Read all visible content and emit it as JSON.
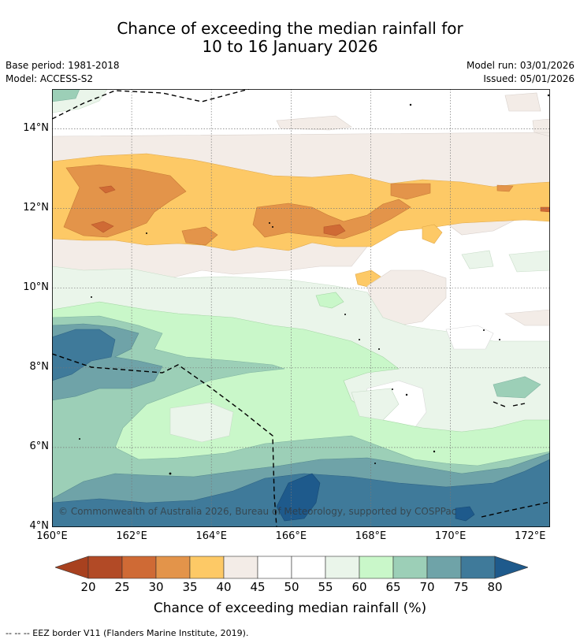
{
  "title": {
    "line1": "Chance of exceeding the median rainfall for",
    "line2": "10 to 16 January 2026"
  },
  "meta": {
    "base_period": "Base period: 1981-2018",
    "model": "Model: ACCESS-S2",
    "model_run": "Model run: 03/01/2026",
    "issued": "Issued: 05/01/2026"
  },
  "map": {
    "lon_range": [
      160,
      172.5
    ],
    "lat_range": [
      4,
      15
    ],
    "lat_ticks": [
      "14°N",
      "12°N",
      "10°N",
      "8°N",
      "6°N",
      "4°N"
    ],
    "lon_ticks": [
      "160°E",
      "162°E",
      "164°E",
      "166°E",
      "168°E",
      "170°E",
      "172°E"
    ],
    "copyright": "© Commonwealth of Australia 2026, Bureau of Meteorology, supported by COSPPac"
  },
  "colorbar": {
    "title": "Chance of exceeding median rainfall (%)",
    "tick_labels": [
      "20",
      "25",
      "30",
      "35",
      "40",
      "45",
      "50",
      "55",
      "60",
      "65",
      "70",
      "75",
      "80"
    ],
    "bins": [
      "#b24a26",
      "#cf6a35",
      "#e3944a",
      "#fdc966",
      "#f3ece7",
      "#ffffff",
      "#ffffff",
      "#eaf5ea",
      "#c9f7c9",
      "#9ccfb7",
      "#6fa3a8",
      "#3f7a9a"
    ],
    "under_color": "#a8411f",
    "over_color": "#1e5a8c"
  },
  "footer": {
    "note": "--  --  -- EEZ border V11 (Flanders Marine Institute, 2019)."
  }
}
